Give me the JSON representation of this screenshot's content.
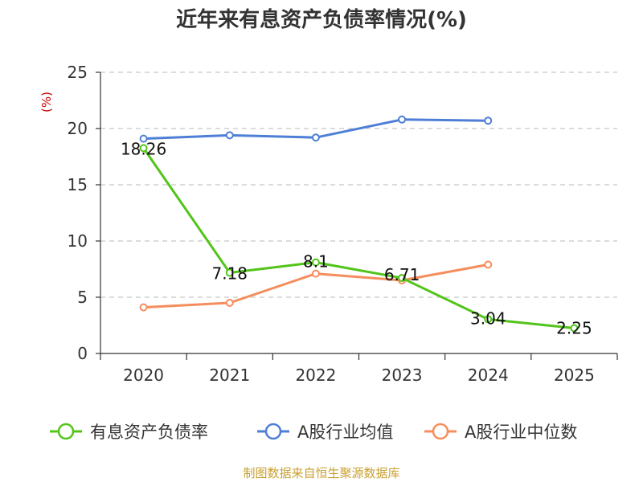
{
  "chart_data": {
    "type": "line",
    "title": "近年来有息资产负债率情况(%)",
    "ylabel": "(%)",
    "ylabel_color": "#cc0000",
    "categories": [
      "2020",
      "2021",
      "2022",
      "2023",
      "2024",
      "2025"
    ],
    "ylim": [
      0,
      25
    ],
    "yticks": [
      0,
      5,
      10,
      15,
      20,
      25
    ],
    "grid": true,
    "legend_position": "bottom",
    "series": [
      {
        "name": "有息资产负债率",
        "color": "#52c41a",
        "values": [
          18.26,
          7.18,
          8.1,
          6.71,
          3.04,
          2.25
        ],
        "labels": [
          "18.26",
          "7.18",
          "8.1",
          "6.71",
          "3.04",
          "2.25"
        ]
      },
      {
        "name": "A股行业均值",
        "color": "#4e7fd6",
        "values": [
          19.1,
          19.4,
          19.2,
          20.8,
          20.7,
          null
        ],
        "labels": []
      },
      {
        "name": "A股行业中位数",
        "color": "#f58d5c",
        "values": [
          4.1,
          4.5,
          7.1,
          6.5,
          7.9,
          null
        ],
        "labels": []
      }
    ],
    "source": "制图数据来自恒生聚源数据库",
    "source_color": "#c8a032"
  }
}
